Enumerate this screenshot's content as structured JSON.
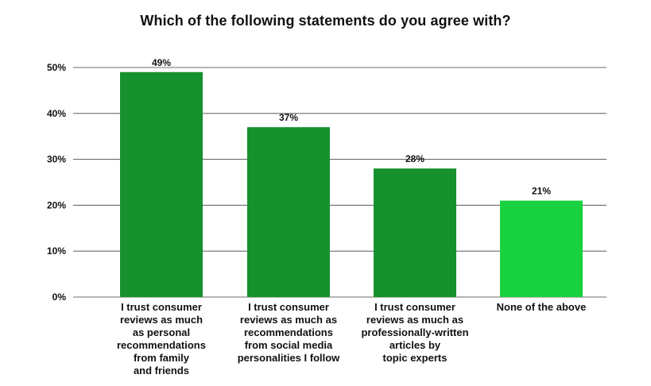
{
  "chart_data": {
    "type": "bar",
    "title": "Which of the following statements do you agree with?",
    "xlabel": "",
    "ylabel": "",
    "ylim": [
      0,
      50
    ],
    "grid": true,
    "y_ticks": [
      "0%",
      "10%",
      "20%",
      "30%",
      "40%",
      "50%"
    ],
    "y_tick_values": [
      0,
      10,
      20,
      30,
      40,
      50
    ],
    "categories": [
      "I trust consumer reviews as much as personal recommendations from family and friends",
      "I trust consumer reviews as much as recommendations from social media personalities I follow",
      "I trust consumer reviews as much as professionally-written articles by topic experts",
      "None of the above"
    ],
    "category_lines": [
      [
        "I trust consumer",
        "reviews as much",
        "as personal",
        "recommendations",
        "from family",
        "and friends"
      ],
      [
        "I trust consumer",
        "reviews as much as",
        "recommendations",
        "from social media",
        "personalities I follow"
      ],
      [
        "I trust consumer",
        "reviews as much as",
        "professionally-written",
        "articles by",
        "topic experts"
      ],
      [
        "None of the above"
      ]
    ],
    "values": [
      49,
      37,
      28,
      21
    ],
    "value_labels": [
      "49%",
      "37%",
      "28%",
      "21%"
    ],
    "colors": {
      "bar": "#17912e",
      "highlight_bar": "#19d23f",
      "grid": "#6b6b6b",
      "text": "#111111"
    },
    "bar_colors": [
      "#17912e",
      "#17912e",
      "#17912e",
      "#19d23f"
    ]
  }
}
